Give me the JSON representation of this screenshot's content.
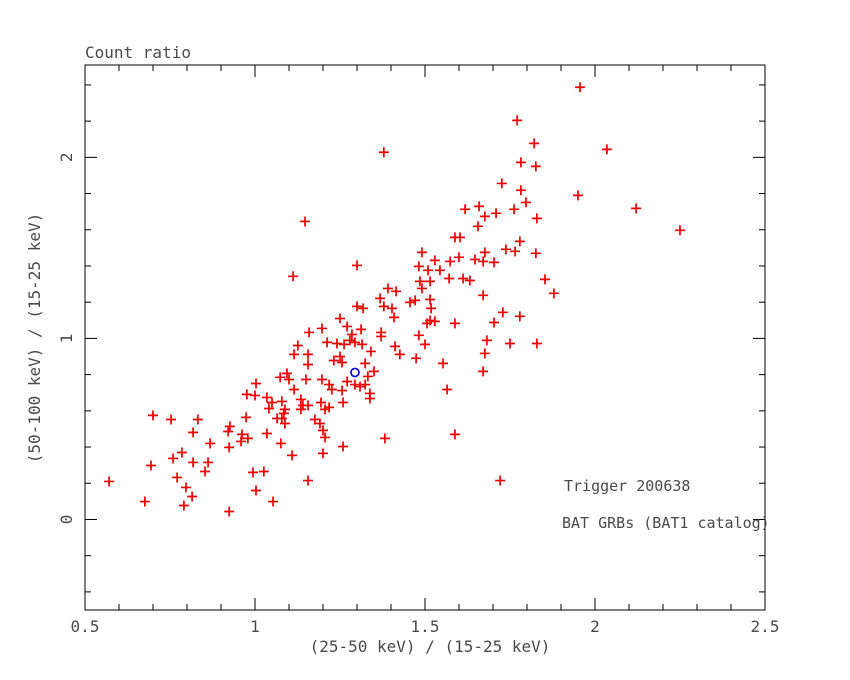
{
  "title": "Count ratio",
  "colors": {
    "background": "#ffffff",
    "frame": "#000000",
    "text": "#4a4a4a",
    "red_marker": "#ee0000",
    "blue_marker": "#0000dd"
  },
  "legend": [
    {
      "text": "Trigger 200638",
      "color": "#ee0000"
    },
    {
      "text": "BAT GRBs (BAT1 catalog)",
      "color": "#0000dd"
    }
  ],
  "chart_data": {
    "type": "scatter",
    "title": "Count ratio",
    "xlabel": "(25-50 keV) / (15-25 keV)",
    "ylabel": "(50-100 keV) / (15-25 keV)",
    "xlim": [
      0.5,
      2.5
    ],
    "ylim": [
      -0.5,
      2.51
    ],
    "grid": false,
    "legend_position": "inside-bottom-right",
    "x_major_ticks": [
      0.5,
      1.0,
      1.5,
      2.0,
      2.5
    ],
    "x_tick_labels": [
      "0.5",
      "1",
      "1.5",
      "2",
      "2.5"
    ],
    "x_minor_step": 0.1,
    "y_major_ticks": [
      0,
      1,
      2
    ],
    "y_tick_labels": [
      "0",
      "1",
      "2"
    ],
    "y_minor_step": 0.2,
    "series": [
      {
        "legend_text": "Trigger 200638",
        "marker": "plus",
        "color": "#ee0000",
        "points": [
          [
            1.147,
            1.646
          ],
          [
            1.379,
            2.028
          ],
          [
            1.771,
            2.204
          ],
          [
            1.821,
            2.077
          ],
          [
            1.782,
            1.972
          ],
          [
            1.826,
            1.95
          ],
          [
            1.726,
            1.856
          ],
          [
            1.782,
            1.818
          ],
          [
            1.797,
            1.751
          ],
          [
            1.618,
            1.713
          ],
          [
            1.659,
            1.729
          ],
          [
            1.676,
            1.674
          ],
          [
            1.709,
            1.691
          ],
          [
            1.762,
            1.713
          ],
          [
            1.829,
            1.663
          ],
          [
            1.656,
            1.619
          ],
          [
            1.588,
            1.558
          ],
          [
            1.603,
            1.558
          ],
          [
            1.779,
            1.536
          ],
          [
            1.956,
            2.387
          ],
          [
            2.035,
            2.044
          ],
          [
            1.95,
            1.79
          ],
          [
            2.121,
            1.718
          ],
          [
            2.25,
            1.597
          ],
          [
            1.112,
            1.343
          ],
          [
            1.159,
            1.033
          ],
          [
            1.126,
            0.961
          ],
          [
            1.115,
            0.912
          ],
          [
            1.156,
            0.912
          ],
          [
            1.156,
            0.856
          ],
          [
            1.094,
            0.807
          ],
          [
            1.074,
            0.785
          ],
          [
            1.1,
            0.773
          ],
          [
            1.15,
            0.773
          ],
          [
            1.003,
            0.751
          ],
          [
            1.115,
            0.718
          ],
          [
            0.976,
            0.691
          ],
          [
            1.0,
            0.685
          ],
          [
            1.035,
            0.674
          ],
          [
            1.05,
            0.646
          ],
          [
            1.079,
            0.652
          ],
          [
            1.135,
            0.663
          ],
          [
            1.141,
            0.63
          ],
          [
            1.156,
            0.63
          ],
          [
            1.041,
            0.613
          ],
          [
            1.088,
            0.608
          ],
          [
            1.135,
            0.608
          ],
          [
            1.085,
            0.586
          ],
          [
            0.7,
            0.575
          ],
          [
            0.974,
            0.564
          ],
          [
            1.065,
            0.558
          ],
          [
            1.079,
            0.558
          ],
          [
            0.753,
            0.552
          ],
          [
            0.832,
            0.552
          ],
          [
            1.088,
            0.53
          ],
          [
            0.926,
            0.514
          ],
          [
            1.491,
            1.475
          ],
          [
            1.676,
            1.475
          ],
          [
            1.738,
            1.492
          ],
          [
            1.765,
            1.481
          ],
          [
            1.826,
            1.47
          ],
          [
            1.3,
            1.403
          ],
          [
            1.529,
            1.431
          ],
          [
            1.574,
            1.425
          ],
          [
            1.6,
            1.448
          ],
          [
            1.647,
            1.436
          ],
          [
            1.671,
            1.425
          ],
          [
            1.703,
            1.42
          ],
          [
            1.482,
            1.398
          ],
          [
            1.509,
            1.376
          ],
          [
            1.544,
            1.376
          ],
          [
            1.571,
            1.331
          ],
          [
            1.612,
            1.331
          ],
          [
            1.632,
            1.32
          ],
          [
            1.485,
            1.315
          ],
          [
            1.515,
            1.315
          ],
          [
            1.491,
            1.276
          ],
          [
            1.391,
            1.276
          ],
          [
            1.415,
            1.26
          ],
          [
            1.671,
            1.238
          ],
          [
            1.368,
            1.221
          ],
          [
            1.456,
            1.199
          ],
          [
            1.471,
            1.21
          ],
          [
            1.3,
            1.177
          ],
          [
            1.318,
            1.166
          ],
          [
            1.379,
            1.177
          ],
          [
            1.403,
            1.166
          ],
          [
            1.515,
            1.215
          ],
          [
            1.518,
            1.166
          ],
          [
            1.729,
            1.144
          ],
          [
            1.409,
            1.116
          ],
          [
            1.515,
            1.099
          ],
          [
            1.529,
            1.094
          ],
          [
            1.506,
            1.083
          ],
          [
            1.25,
            1.11
          ],
          [
            1.197,
            1.055
          ],
          [
            1.271,
            1.066
          ],
          [
            1.285,
            1.022
          ],
          [
            1.312,
            1.05
          ],
          [
            1.212,
            0.978
          ],
          [
            1.241,
            0.972
          ],
          [
            1.279,
            0.989
          ],
          [
            1.294,
            0.978
          ],
          [
            1.262,
            0.967
          ],
          [
            1.315,
            0.967
          ],
          [
            1.371,
            1.033
          ],
          [
            1.371,
            1.011
          ],
          [
            1.588,
            1.083
          ],
          [
            1.703,
            1.088
          ],
          [
            1.779,
            1.122
          ],
          [
            1.829,
            0.972
          ],
          [
            1.75,
            0.972
          ],
          [
            1.482,
            1.017
          ],
          [
            1.5,
            0.967
          ],
          [
            1.412,
            0.956
          ],
          [
            1.426,
            0.912
          ],
          [
            1.341,
            0.928
          ],
          [
            1.25,
            0.9
          ],
          [
            1.232,
            0.878
          ],
          [
            1.256,
            0.867
          ],
          [
            1.324,
            0.862
          ],
          [
            1.474,
            0.89
          ],
          [
            1.682,
            0.989
          ],
          [
            1.676,
            0.917
          ],
          [
            1.553,
            0.862
          ],
          [
            1.35,
            0.818
          ],
          [
            1.332,
            0.79
          ],
          [
            1.271,
            0.762
          ],
          [
            1.294,
            0.745
          ],
          [
            1.197,
            0.773
          ],
          [
            1.218,
            0.745
          ],
          [
            1.226,
            0.718
          ],
          [
            1.256,
            0.712
          ],
          [
            1.309,
            0.734
          ],
          [
            1.324,
            0.745
          ],
          [
            1.338,
            0.696
          ],
          [
            1.671,
            0.818
          ],
          [
            1.565,
            0.718
          ],
          [
            1.259,
            0.646
          ],
          [
            1.194,
            0.646
          ],
          [
            1.218,
            0.619
          ],
          [
            1.338,
            0.668
          ],
          [
            1.176,
            0.552
          ],
          [
            1.206,
            0.608
          ],
          [
            1.191,
            0.53
          ],
          [
            1.853,
            1.326
          ],
          [
            1.879,
            1.249
          ],
          [
            0.818,
            0.481
          ],
          [
            0.921,
            0.486
          ],
          [
            0.962,
            0.47
          ],
          [
            0.979,
            0.448
          ],
          [
            1.035,
            0.475
          ],
          [
            0.868,
            0.42
          ],
          [
            0.924,
            0.398
          ],
          [
            0.959,
            0.431
          ],
          [
            0.785,
            0.37
          ],
          [
            0.759,
            0.337
          ],
          [
            0.818,
            0.315
          ],
          [
            0.862,
            0.315
          ],
          [
            0.853,
            0.265
          ],
          [
            0.694,
            0.298
          ],
          [
            0.771,
            0.232
          ],
          [
            0.571,
            0.21
          ],
          [
            0.797,
            0.177
          ],
          [
            0.815,
            0.127
          ],
          [
            0.791,
            0.077
          ],
          [
            0.676,
            0.099
          ],
          [
            0.924,
            0.044
          ],
          [
            0.994,
            0.26
          ],
          [
            1.026,
            0.265
          ],
          [
            1.003,
            0.16
          ],
          [
            1.053,
            0.099
          ],
          [
            1.076,
            0.42
          ],
          [
            1.109,
            0.354
          ],
          [
            1.156,
            0.215
          ],
          [
            1.2,
            0.492
          ],
          [
            1.206,
            0.453
          ],
          [
            1.259,
            0.403
          ],
          [
            1.2,
            0.365
          ],
          [
            1.382,
            0.448
          ],
          [
            1.588,
            0.47
          ],
          [
            1.721,
            0.215
          ]
        ]
      },
      {
        "legend_text": "BAT GRBs (BAT1 catalog)",
        "marker": "circle",
        "color": "#0000dd",
        "points": [
          [
            1.294,
            0.812
          ]
        ]
      }
    ]
  }
}
